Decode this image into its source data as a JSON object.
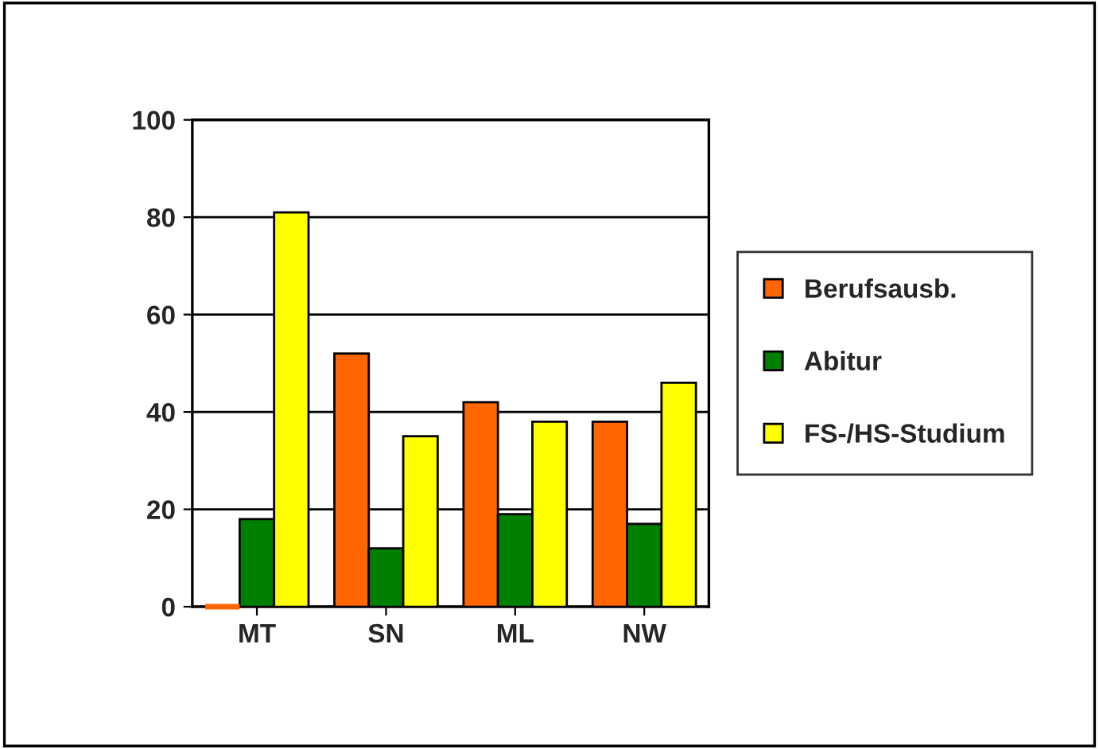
{
  "chart_data": {
    "type": "bar",
    "categories": [
      "MT",
      "SN",
      "ML",
      "NW"
    ],
    "series": [
      {
        "name": "Berufsausb.",
        "color": "#ff6600",
        "values": [
          0,
          52,
          42,
          38
        ]
      },
      {
        "name": "Abitur",
        "color": "#008000",
        "values": [
          18,
          12,
          19,
          17
        ]
      },
      {
        "name": "FS-/HS-Studium",
        "color": "#ffff00",
        "values": [
          81,
          35,
          38,
          46
        ]
      }
    ],
    "ylim": [
      0,
      100
    ],
    "yticks": [
      0,
      20,
      40,
      60,
      80,
      100
    ],
    "grid": "y",
    "legend": "right"
  }
}
